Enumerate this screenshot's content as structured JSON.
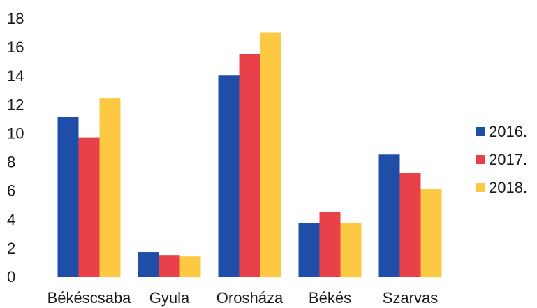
{
  "chart_data": {
    "type": "bar",
    "title": "",
    "xlabel": "",
    "ylabel": "",
    "categories": [
      "Békéscsaba",
      "Gyula",
      "Orosháza",
      "Békés",
      "Szarvas"
    ],
    "series": [
      {
        "name": "2016.",
        "color": "#1f4ea8",
        "values": [
          11.1,
          1.7,
          14.0,
          3.7,
          8.5
        ]
      },
      {
        "name": "2017.",
        "color": "#e8414a",
        "values": [
          9.7,
          1.5,
          15.5,
          4.5,
          7.2
        ]
      },
      {
        "name": "2018.",
        "color": "#fdc943",
        "values": [
          12.4,
          1.4,
          17.0,
          3.7,
          6.1
        ]
      }
    ],
    "ylim": [
      0,
      18
    ],
    "yticks": [
      0,
      2,
      4,
      6,
      8,
      10,
      12,
      14,
      16,
      18
    ],
    "grid": false,
    "legend": "right"
  }
}
